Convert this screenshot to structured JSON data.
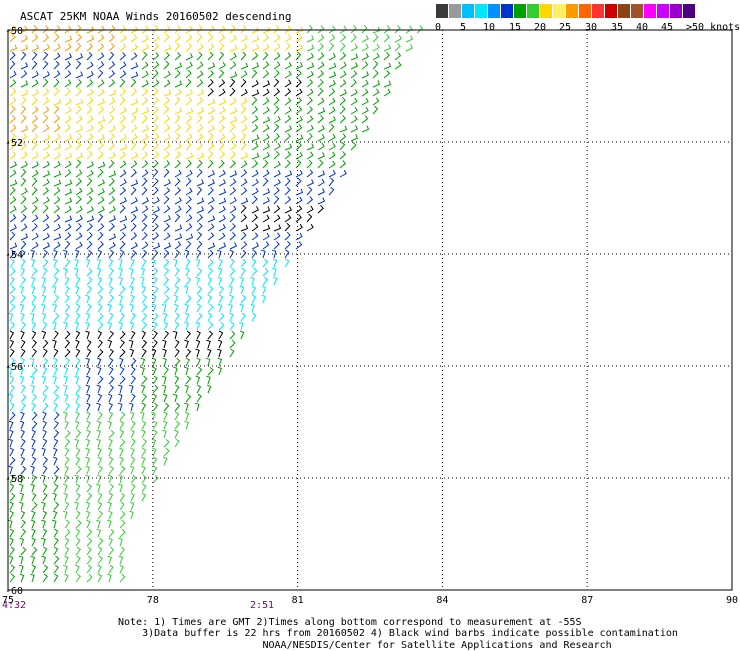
{
  "title": "ASCAT 25KM NOAA Winds 20160502 descending",
  "legend": {
    "labels": [
      "0",
      "5",
      "10",
      "15",
      "20",
      "25",
      "30",
      "35",
      "40",
      "45",
      ">50 knots"
    ],
    "colors": [
      "#3a3a3a",
      "#9a9a9a",
      "#00bfff",
      "#00e6ff",
      "#0090ff",
      "#0033cc",
      "#00a000",
      "#33cc33",
      "#ffd700",
      "#ffee66",
      "#ff9900",
      "#ff6600",
      "#ff3333",
      "#cc0000",
      "#8b4513",
      "#a0522d",
      "#ff00ff",
      "#cc00ff",
      "#9900cc",
      "#4b0082"
    ]
  },
  "axes": {
    "lat_labels": [
      "-50",
      "-52",
      "-54",
      "-56",
      "-58",
      "-60"
    ],
    "lon_labels": [
      "75",
      "78",
      "81",
      "84",
      "87",
      "90"
    ],
    "lat_range": [
      -60,
      -50
    ],
    "lon_range": [
      75,
      90
    ]
  },
  "times": [
    {
      "text": "4:32"
    },
    {
      "text": "2:51"
    }
  ],
  "notes": {
    "line1": "Note: 1) Times are GMT 2)Times along bottom correspond to measurement at -55S",
    "line2": "    3)Data buffer is 22 hrs from 20160502 4) Black wind barbs indicate possible contamination",
    "line3": "                        NOAA/NESDIS/Center for Satellite Applications and Research"
  },
  "wind_colors": {
    "contaminated": "#000000",
    "light": "#00e6ff",
    "moderate": "#0033cc",
    "fresh": "#00a000",
    "strong": "#33cc33",
    "gale": "#ffd700",
    "storm": "#ff9900"
  }
}
